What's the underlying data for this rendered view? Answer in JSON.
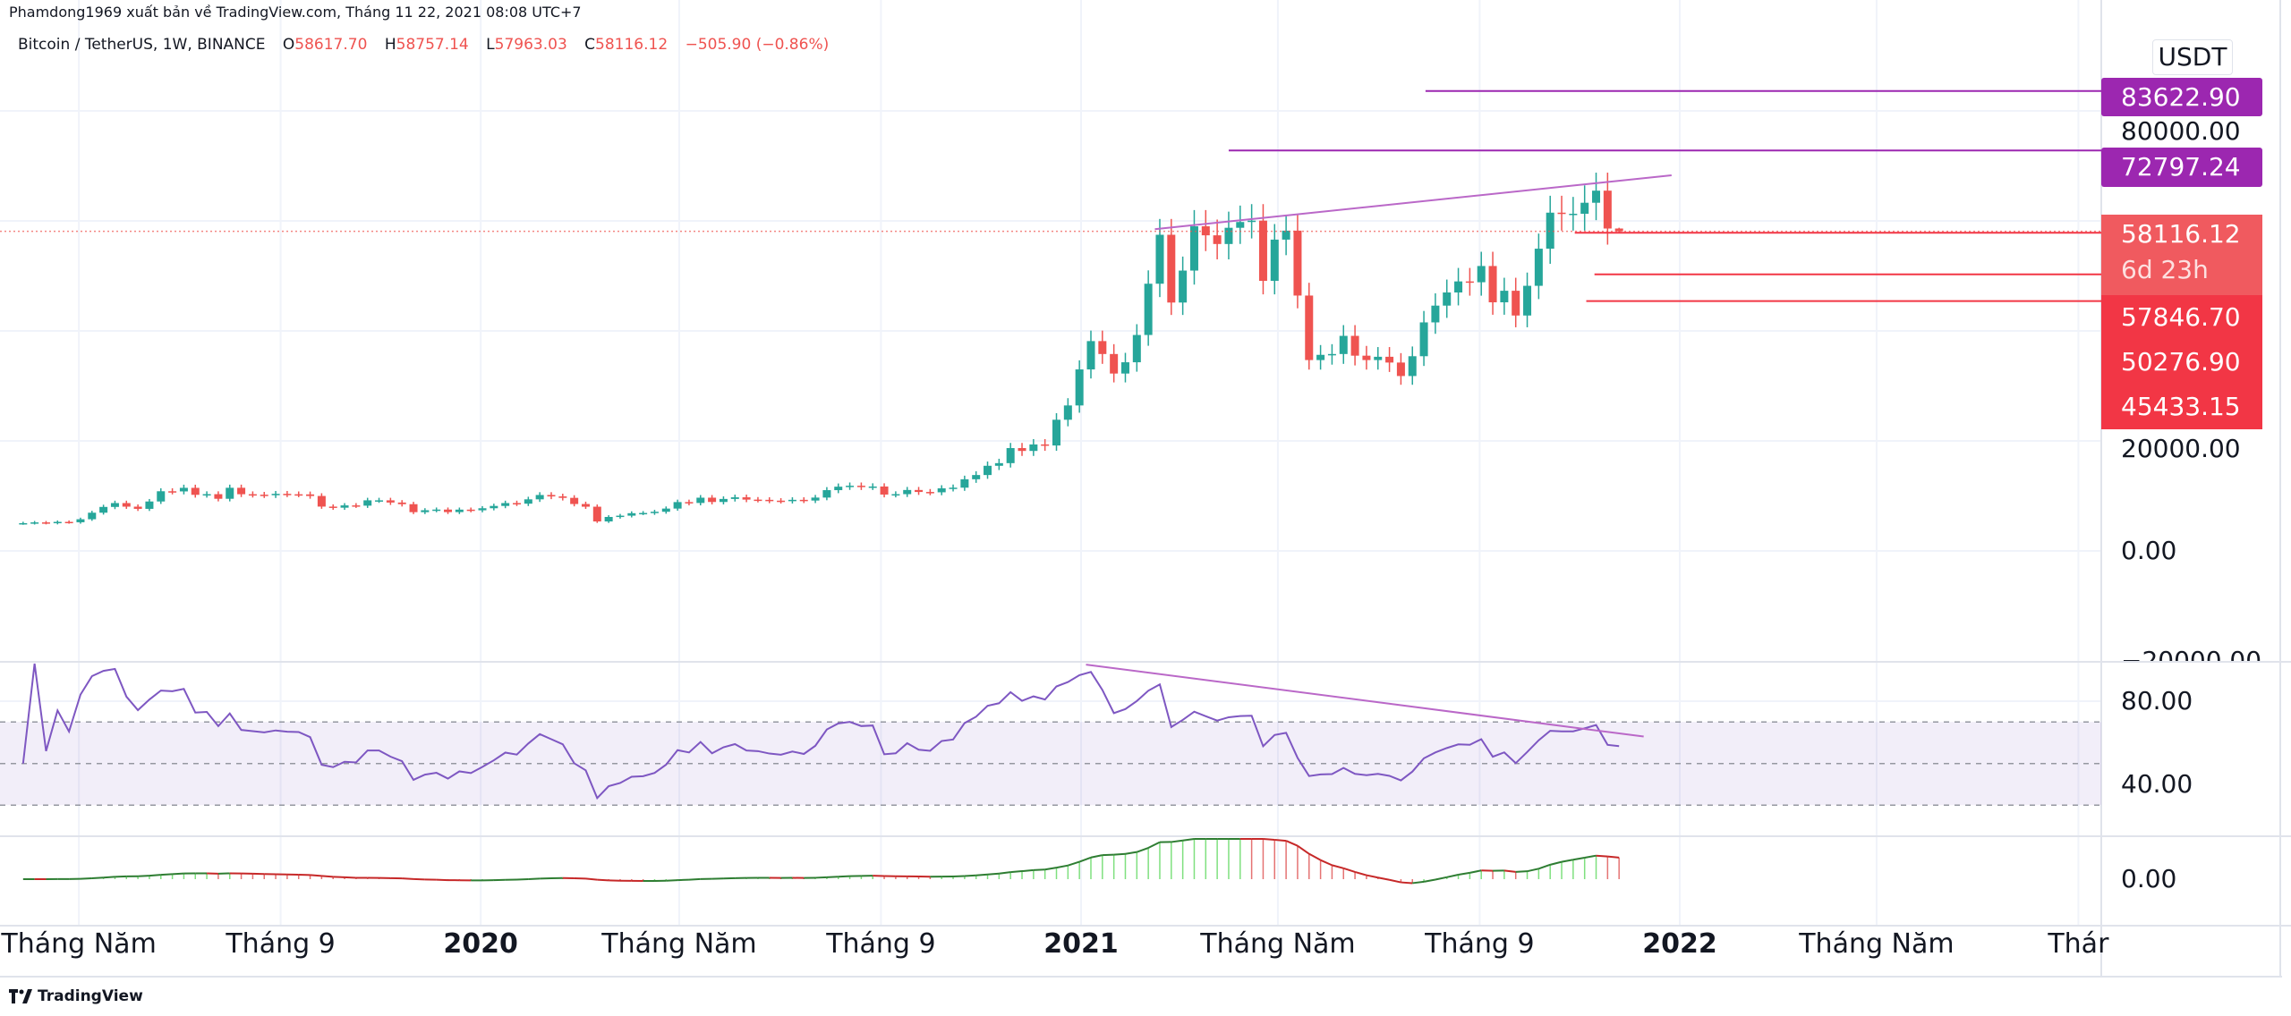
{
  "publisher": "Phamdong1969 xuất bản về TradingView.com, Tháng 11 22, 2021 08:08 UTC+7",
  "legend": {
    "title": "Bitcoin / TetherUS, 1W, BINANCE",
    "o_key": "O",
    "o": "58617.70",
    "h_key": "H",
    "h": "58757.14",
    "l_key": "L",
    "l": "57963.03",
    "c_key": "C",
    "c": "58116.12",
    "change": "−505.90 (−0.86%)"
  },
  "currency": "USDT",
  "price_axis": {
    "labels": [
      "80000.00",
      "20000.00",
      "0.00",
      "−20000.00"
    ],
    "tags": {
      "h1": "83622.90",
      "h2": "72797.24",
      "last": "58116.12",
      "countdown": "6d 23h",
      "r1": "57846.70",
      "r2": "50276.90",
      "r3": "45433.15"
    }
  },
  "rsi_axis": {
    "labels": [
      "80.00",
      "40.00"
    ]
  },
  "macd_axis": {
    "labels": [
      "0.00"
    ]
  },
  "footer": {
    "logo_text": "TradingView"
  },
  "colors": {
    "up": "#26a69a",
    "down": "#ef5350",
    "drawing": "#9c27b0",
    "hline_red": "#f23645",
    "rsi": "#7e57c2",
    "macd_up_bar": "#7fe07f",
    "macd_down_bar": "#e57373",
    "macd_up_line": "#2e7d32",
    "macd_down_line": "#c62828"
  },
  "chart_data": {
    "type": "candlestick",
    "interval": "1W",
    "start_week": "2019-03-25",
    "first_open": 5000,
    "wick_pct": 0.05,
    "closes": [
      5050,
      5190,
      5080,
      5280,
      5210,
      5760,
      6950,
      8000,
      8700,
      8050,
      7650,
      8990,
      10850,
      10820,
      11470,
      10200,
      10320,
      9480,
      11480,
      10310,
      10220,
      10130,
      10380,
      10300,
      10280,
      9990,
      8060,
      7860,
      8280,
      8230,
      9200,
      9200,
      8800,
      8500,
      7050,
      7400,
      7520,
      7060,
      7510,
      7390,
      7760,
      8180,
      8700,
      8590,
      9380,
      10170,
      9910,
      9650,
      8530,
      8040,
      5360,
      6180,
      6410,
      6860,
      6900,
      7120,
      7700,
      8880,
      8720,
      9680,
      8900,
      9450,
      9750,
      9330,
      9290,
      9140,
      9070,
      9290,
      9160,
      9700,
      11050,
      11680,
      11850,
      11660,
      11710,
      10250,
      10320,
      11080,
      10720,
      10660,
      11380,
      11500,
      13030,
      13800,
      15480,
      15960,
      18700,
      18180,
      19360,
      19170,
      23850,
      26450,
      33000,
      38150,
      35800,
      32250,
      34300,
      39260,
      48580,
      57480,
      45160,
      50970,
      59020,
      57380,
      55800,
      58750,
      59800,
      60050,
      49100,
      56600,
      58230,
      46430,
      34700,
      35650,
      35800,
      39100,
      35500,
      34700,
      35300,
      34250,
      31800,
      35400,
      41550,
      44600,
      46990,
      49000,
      48850,
      51800,
      45200,
      47300,
      42800,
      48200,
      54950,
      61500,
      61300,
      61300,
      63300,
      65500,
      58617.7,
      58116.12
    ],
    "last_candle": {
      "open": 58617.7,
      "high": 58757.14,
      "low": 57963.03,
      "close": 58116.12
    },
    "price_range": [
      -20000,
      100000
    ],
    "indicators": {
      "rsi": {
        "period": 14,
        "band": [
          30,
          70
        ],
        "mid": 50,
        "range": [
          20,
          100
        ]
      },
      "macd": {
        "fast": 12,
        "slow": 26
      }
    },
    "x_ticks": [
      {
        "label": "Tháng Năm",
        "date": "2019-05-01",
        "year": false
      },
      {
        "label": "Tháng 9",
        "date": "2019-09-01",
        "year": false
      },
      {
        "label": "2020",
        "date": "2020-01-01",
        "year": true
      },
      {
        "label": "Tháng Năm",
        "date": "2020-05-01",
        "year": false
      },
      {
        "label": "Tháng 9",
        "date": "2020-09-01",
        "year": false
      },
      {
        "label": "2021",
        "date": "2021-01-01",
        "year": true
      },
      {
        "label": "Tháng Năm",
        "date": "2021-05-01",
        "year": false
      },
      {
        "label": "Tháng 9",
        "date": "2021-09-01",
        "year": false
      },
      {
        "label": "2022",
        "date": "2022-01-01",
        "year": true
      },
      {
        "label": "Tháng Năm",
        "date": "2022-05-01",
        "year": false
      },
      {
        "label": "Thár",
        "date": "2022-09-01",
        "year": false
      }
    ],
    "horizontal_lines": [
      {
        "price": 83622.9,
        "from": "2021-07-30",
        "color": "purple"
      },
      {
        "price": 72797.24,
        "from": "2021-04-01",
        "color": "purple"
      },
      {
        "price": 57846.7,
        "from": "2021-10-29",
        "color": "red"
      },
      {
        "price": 50276.9,
        "from": "2021-11-10",
        "color": "red"
      },
      {
        "price": 45433.15,
        "from": "2021-11-05",
        "color": "red"
      }
    ],
    "price_trendline": {
      "from": {
        "date": "2021-02-15",
        "price": 58500
      },
      "to": {
        "date": "2021-12-27",
        "price": 68300
      }
    },
    "rsi_trendline": {
      "from": {
        "date": "2021-01-04",
        "value": 97.6
      },
      "to": {
        "date": "2021-12-10",
        "value": 63
      }
    }
  }
}
